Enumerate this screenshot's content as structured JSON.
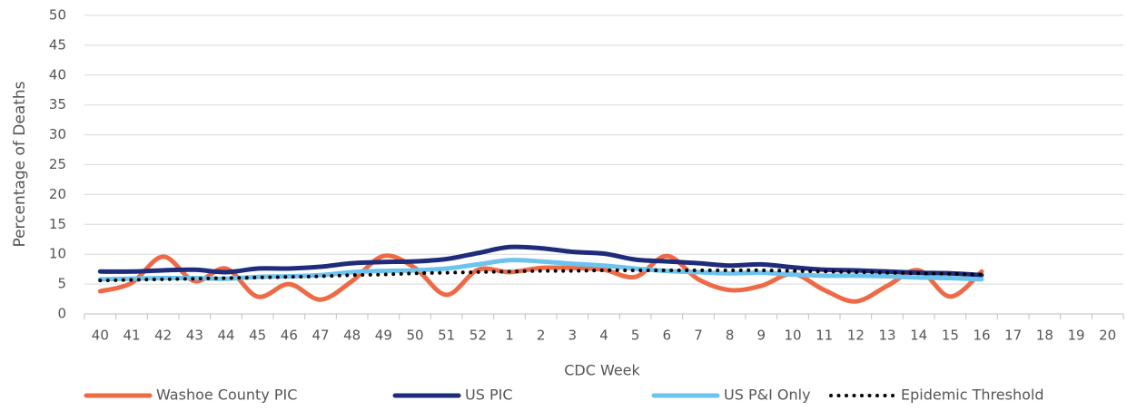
{
  "chart_data": {
    "type": "line",
    "x_label": "CDC Week",
    "y_label": "Percentage of Deaths",
    "categories": [
      "40",
      "41",
      "42",
      "43",
      "44",
      "45",
      "46",
      "47",
      "48",
      "49",
      "50",
      "51",
      "52",
      "1",
      "2",
      "3",
      "4",
      "5",
      "6",
      "7",
      "8",
      "9",
      "10",
      "11",
      "12",
      "13",
      "14",
      "15",
      "16",
      "17",
      "18",
      "19",
      "20"
    ],
    "series": [
      {
        "name": "Washoe County PIC",
        "color": "#ee6a46",
        "style": "solid",
        "values": [
          3.8,
          5.2,
          9.6,
          5.5,
          7.6,
          2.9,
          5.0,
          2.4,
          5.5,
          9.7,
          7.7,
          3.2,
          7.4,
          7.0,
          7.7,
          7.7,
          7.4,
          6.2,
          9.7,
          5.8,
          4.0,
          4.7,
          6.7,
          4.0,
          2.1,
          4.7,
          7.3,
          2.9,
          7.1,
          null,
          null,
          null,
          null
        ]
      },
      {
        "name": "US PIC",
        "color": "#1f2b7b",
        "style": "solid",
        "values": [
          7.1,
          7.1,
          7.3,
          7.4,
          7.0,
          7.6,
          7.6,
          7.9,
          8.5,
          8.7,
          8.8,
          9.2,
          10.2,
          11.2,
          11.0,
          10.4,
          10.1,
          9.1,
          8.8,
          8.5,
          8.1,
          8.3,
          7.8,
          7.4,
          7.3,
          7.1,
          6.9,
          6.8,
          6.5,
          null,
          null,
          null,
          null
        ]
      },
      {
        "name": "US P&I Only",
        "color": "#6cc3ee",
        "style": "solid",
        "values": [
          5.8,
          5.9,
          6.0,
          6.0,
          5.9,
          6.2,
          6.3,
          6.5,
          7.0,
          7.2,
          7.3,
          7.6,
          8.3,
          9.0,
          8.8,
          8.4,
          8.1,
          7.6,
          7.2,
          7.0,
          6.8,
          6.9,
          6.6,
          6.4,
          6.4,
          6.3,
          6.1,
          6.0,
          5.8,
          null,
          null,
          null,
          null
        ]
      },
      {
        "name": "Epidemic Threshold",
        "color": "#000000",
        "style": "dotted",
        "values": [
          5.6,
          5.7,
          5.8,
          5.9,
          6.0,
          6.1,
          6.2,
          6.3,
          6.5,
          6.6,
          6.8,
          6.9,
          7.0,
          7.1,
          7.2,
          7.2,
          7.3,
          7.3,
          7.3,
          7.3,
          7.3,
          7.3,
          7.2,
          7.1,
          7.0,
          6.9,
          6.8,
          6.7,
          6.6,
          null,
          null,
          null,
          null
        ]
      }
    ],
    "ylim": [
      0,
      50
    ],
    "yticks": [
      0,
      5,
      10,
      15,
      20,
      25,
      30,
      35,
      40,
      45,
      50
    ],
    "grid": true,
    "smooth": true,
    "legend_position": "bottom"
  }
}
